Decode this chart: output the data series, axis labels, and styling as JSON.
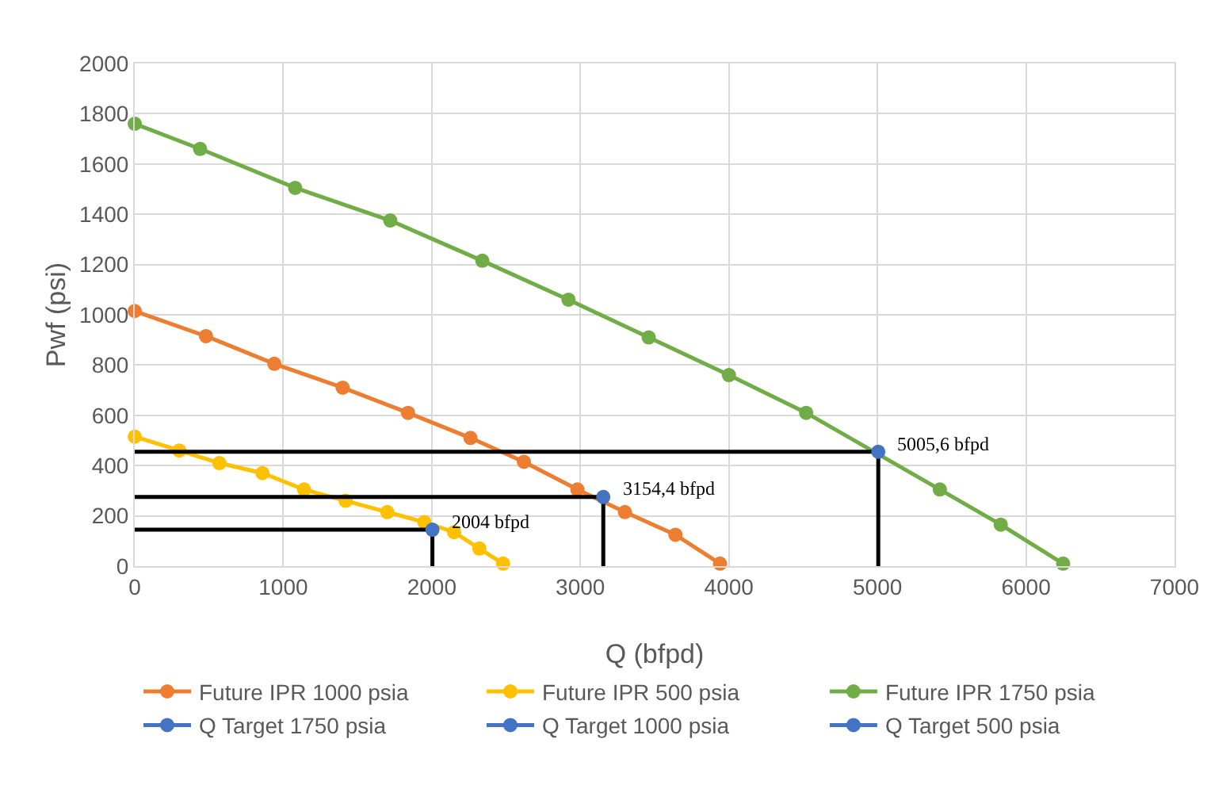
{
  "chart_data": {
    "type": "line",
    "xlabel": "Q (bfpd)",
    "ylabel": "Pwf (psi)",
    "xlim": [
      0,
      7000
    ],
    "xticks": [
      0,
      1000,
      2000,
      3000,
      4000,
      5000,
      6000,
      7000
    ],
    "ylim": [
      0,
      2000
    ],
    "yticks": [
      0,
      200,
      400,
      600,
      800,
      1000,
      1200,
      1400,
      1600,
      1800,
      2000
    ],
    "grid": true,
    "legend": "bottom",
    "marker": "circle",
    "line_style": "solid",
    "series": [
      {
        "name": "Future IPR 1000 psia",
        "color": "#ed7d31",
        "x": [
          0,
          480,
          940,
          1400,
          1840,
          2260,
          2620,
          2980,
          3300,
          3640,
          3940
        ],
        "values": [
          1015,
          915,
          805,
          710,
          610,
          510,
          415,
          305,
          215,
          125,
          10
        ]
      },
      {
        "name": "Future IPR 500 psia",
        "color": "#ffc000",
        "x": [
          0,
          300,
          570,
          860,
          1140,
          1420,
          1700,
          1950,
          2150,
          2320,
          2480
        ],
        "values": [
          515,
          460,
          410,
          370,
          305,
          260,
          215,
          175,
          135,
          70,
          10
        ]
      },
      {
        "name": "Future IPR 1750 psia",
        "color": "#70ad47",
        "x": [
          0,
          440,
          1080,
          1720,
          2340,
          2920,
          3460,
          4000,
          4520,
          5420,
          5830,
          6250
        ],
        "values": [
          1760,
          1660,
          1505,
          1375,
          1215,
          1060,
          910,
          760,
          610,
          305,
          165,
          10
        ]
      },
      {
        "color": "#000000",
        "marker": "none",
        "x": [
          0,
          5005.6,
          5005.6
        ],
        "values": [
          455,
          455,
          0
        ]
      },
      {
        "color": "#000000",
        "marker": "none",
        "x": [
          0,
          3154.4,
          3154.4
        ],
        "values": [
          275,
          275,
          0
        ]
      },
      {
        "color": "#000000",
        "marker": "none",
        "x": [
          0,
          2004,
          2004
        ],
        "values": [
          145,
          145,
          0
        ]
      },
      {
        "name": "Q Target 1750 psia",
        "color": "#4472c4",
        "x": [
          5005.6
        ],
        "values": [
          455
        ]
      },
      {
        "name": "Q Target 1000 psia",
        "color": "#4472c4",
        "x": [
          3154.4
        ],
        "values": [
          275
        ]
      },
      {
        "name": "Q Target 500 psia",
        "color": "#4472c4",
        "x": [
          2004
        ],
        "values": [
          145
        ]
      }
    ],
    "annotations": [
      {
        "text": "5005,6 bfpd",
        "x": 5005.6,
        "y": 455
      },
      {
        "text": "3154,4 bfpd",
        "x": 3154.4,
        "y": 275
      },
      {
        "text": "2004 bfpd",
        "x": 2004,
        "y": 145
      }
    ]
  }
}
